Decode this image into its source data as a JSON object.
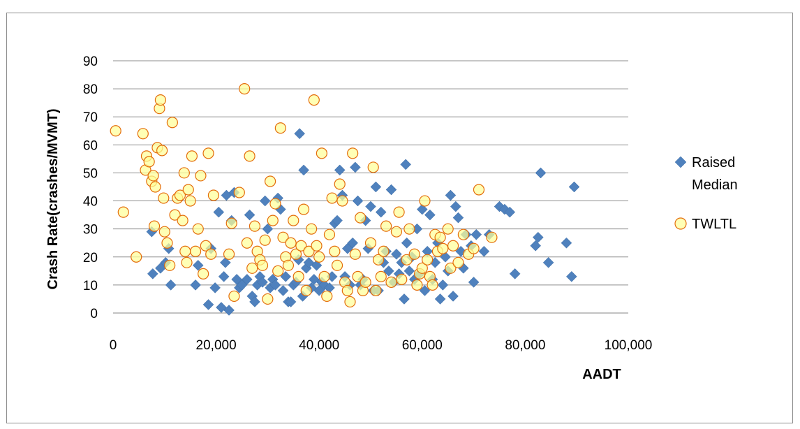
{
  "chart_data": {
    "type": "scatter",
    "xlabel": "AADT",
    "ylabel": "Crash Rate(crashes/MVMT)",
    "xlim": [
      0,
      100000
    ],
    "ylim": [
      0,
      90
    ],
    "x_ticks": [
      "0",
      "20,000",
      "40,000",
      "60,000",
      "80,000",
      "100,000"
    ],
    "y_ticks": [
      "0",
      "10",
      "20",
      "30",
      "40",
      "50",
      "60",
      "70",
      "80",
      "90"
    ],
    "grid": "horizontal",
    "legend_position": "right",
    "series": [
      {
        "name": "Raised Median",
        "marker": "diamond",
        "color": "#4f81bd",
        "points": [
          [
            7500,
            29
          ],
          [
            7700,
            14
          ],
          [
            9200,
            16
          ],
          [
            10200,
            18
          ],
          [
            10800,
            23
          ],
          [
            11200,
            10
          ],
          [
            16000,
            10
          ],
          [
            16500,
            17
          ],
          [
            18500,
            3
          ],
          [
            19000,
            23
          ],
          [
            19800,
            9
          ],
          [
            20500,
            36
          ],
          [
            21000,
            2
          ],
          [
            21500,
            13
          ],
          [
            21800,
            18
          ],
          [
            22000,
            42
          ],
          [
            22500,
            1
          ],
          [
            23000,
            33
          ],
          [
            23500,
            43
          ],
          [
            24000,
            12
          ],
          [
            24500,
            9
          ],
          [
            25000,
            10
          ],
          [
            26000,
            12
          ],
          [
            26500,
            35
          ],
          [
            27000,
            6
          ],
          [
            27500,
            4
          ],
          [
            28000,
            10
          ],
          [
            28500,
            13
          ],
          [
            29000,
            11
          ],
          [
            29500,
            40
          ],
          [
            30000,
            30
          ],
          [
            30500,
            9
          ],
          [
            31000,
            12
          ],
          [
            31500,
            10
          ],
          [
            32000,
            41
          ],
          [
            32500,
            37
          ],
          [
            33000,
            8
          ],
          [
            33500,
            13
          ],
          [
            34000,
            4
          ],
          [
            34500,
            4
          ],
          [
            35000,
            10
          ],
          [
            35500,
            11
          ],
          [
            36000,
            19
          ],
          [
            36200,
            64
          ],
          [
            36800,
            6
          ],
          [
            37000,
            51
          ],
          [
            37500,
            16
          ],
          [
            38000,
            18
          ],
          [
            38500,
            9
          ],
          [
            39000,
            12
          ],
          [
            39500,
            17
          ],
          [
            40000,
            8
          ],
          [
            40500,
            11
          ],
          [
            41000,
            10
          ],
          [
            42000,
            9
          ],
          [
            42500,
            13
          ],
          [
            43000,
            32
          ],
          [
            43500,
            33
          ],
          [
            44000,
            51
          ],
          [
            44500,
            42
          ],
          [
            45000,
            13
          ],
          [
            45500,
            23
          ],
          [
            46000,
            10
          ],
          [
            46500,
            25
          ],
          [
            47000,
            52
          ],
          [
            47500,
            40
          ],
          [
            48000,
            10
          ],
          [
            48500,
            12
          ],
          [
            49000,
            33
          ],
          [
            49500,
            23
          ],
          [
            50000,
            38
          ],
          [
            50500,
            8
          ],
          [
            51000,
            45
          ],
          [
            51500,
            8
          ],
          [
            52000,
            36
          ],
          [
            52500,
            18
          ],
          [
            53000,
            22
          ],
          [
            53500,
            15
          ],
          [
            54000,
            44
          ],
          [
            54500,
            11
          ],
          [
            55000,
            21
          ],
          [
            55500,
            14
          ],
          [
            56000,
            18
          ],
          [
            56500,
            5
          ],
          [
            56800,
            53
          ],
          [
            57000,
            25
          ],
          [
            57500,
            15
          ],
          [
            58000,
            20
          ],
          [
            58500,
            12
          ],
          [
            59000,
            30
          ],
          [
            59500,
            14
          ],
          [
            60000,
            37
          ],
          [
            60500,
            8
          ],
          [
            61000,
            22
          ],
          [
            61500,
            35
          ],
          [
            62000,
            12
          ],
          [
            62500,
            18
          ],
          [
            63000,
            25
          ],
          [
            63500,
            5
          ],
          [
            64000,
            10
          ],
          [
            64500,
            20
          ],
          [
            65000,
            15
          ],
          [
            65500,
            42
          ],
          [
            66000,
            6
          ],
          [
            66500,
            38
          ],
          [
            67000,
            34
          ],
          [
            67500,
            22
          ],
          [
            68000,
            16
          ],
          [
            68500,
            28
          ],
          [
            69500,
            24
          ],
          [
            70000,
            11
          ],
          [
            70500,
            28
          ],
          [
            72000,
            22
          ],
          [
            73000,
            28
          ],
          [
            75000,
            38
          ],
          [
            76000,
            37
          ],
          [
            77000,
            36
          ],
          [
            78000,
            14
          ],
          [
            82000,
            24
          ],
          [
            82500,
            27
          ],
          [
            83000,
            50
          ],
          [
            84500,
            18
          ],
          [
            88000,
            25
          ],
          [
            89000,
            13
          ],
          [
            89500,
            45
          ]
        ]
      },
      {
        "name": "TWLTL",
        "marker": "circle",
        "color": "#ffff99",
        "stroke": "#e46c0a",
        "points": [
          [
            500,
            65
          ],
          [
            2000,
            36
          ],
          [
            4500,
            20
          ],
          [
            5800,
            64
          ],
          [
            6300,
            51
          ],
          [
            6500,
            56
          ],
          [
            7000,
            54
          ],
          [
            7500,
            47
          ],
          [
            7800,
            49
          ],
          [
            8000,
            31
          ],
          [
            8200,
            45
          ],
          [
            8600,
            59
          ],
          [
            9000,
            73
          ],
          [
            9200,
            76
          ],
          [
            9500,
            58
          ],
          [
            9800,
            41
          ],
          [
            10000,
            29
          ],
          [
            10500,
            25
          ],
          [
            11000,
            17
          ],
          [
            11500,
            68
          ],
          [
            12000,
            35
          ],
          [
            12500,
            41
          ],
          [
            13000,
            42
          ],
          [
            13500,
            33
          ],
          [
            13800,
            50
          ],
          [
            14000,
            22
          ],
          [
            14300,
            18
          ],
          [
            14600,
            44
          ],
          [
            15000,
            40
          ],
          [
            15300,
            56
          ],
          [
            16000,
            22
          ],
          [
            16500,
            30
          ],
          [
            17000,
            49
          ],
          [
            17500,
            14
          ],
          [
            18000,
            24
          ],
          [
            18500,
            57
          ],
          [
            19000,
            21
          ],
          [
            19500,
            42
          ],
          [
            22500,
            21
          ],
          [
            23000,
            32
          ],
          [
            23500,
            6
          ],
          [
            24500,
            43
          ],
          [
            25500,
            80
          ],
          [
            26000,
            25
          ],
          [
            26500,
            56
          ],
          [
            27000,
            16
          ],
          [
            27500,
            31
          ],
          [
            28000,
            22
          ],
          [
            28500,
            19
          ],
          [
            29000,
            17
          ],
          [
            29500,
            26
          ],
          [
            30000,
            5
          ],
          [
            30500,
            47
          ],
          [
            31000,
            33
          ],
          [
            31500,
            39
          ],
          [
            32000,
            15
          ],
          [
            32500,
            66
          ],
          [
            33000,
            27
          ],
          [
            33500,
            20
          ],
          [
            34000,
            17
          ],
          [
            34500,
            25
          ],
          [
            35000,
            33
          ],
          [
            35500,
            21
          ],
          [
            36000,
            13
          ],
          [
            36500,
            24
          ],
          [
            37000,
            37
          ],
          [
            37500,
            8
          ],
          [
            38000,
            22
          ],
          [
            38500,
            30
          ],
          [
            39000,
            76
          ],
          [
            39500,
            24
          ],
          [
            40000,
            20
          ],
          [
            40500,
            57
          ],
          [
            41000,
            13
          ],
          [
            41500,
            6
          ],
          [
            42000,
            28
          ],
          [
            42500,
            41
          ],
          [
            43000,
            22
          ],
          [
            43500,
            17
          ],
          [
            44000,
            46
          ],
          [
            44500,
            40
          ],
          [
            45000,
            11
          ],
          [
            45500,
            8
          ],
          [
            46000,
            4
          ],
          [
            46500,
            57
          ],
          [
            47000,
            21
          ],
          [
            47500,
            13
          ],
          [
            48000,
            34
          ],
          [
            48500,
            8
          ],
          [
            49000,
            11
          ],
          [
            50000,
            25
          ],
          [
            50500,
            52
          ],
          [
            51000,
            8
          ],
          [
            51500,
            19
          ],
          [
            52000,
            13
          ],
          [
            52500,
            22
          ],
          [
            53000,
            31
          ],
          [
            54000,
            11
          ],
          [
            55000,
            29
          ],
          [
            55500,
            36
          ],
          [
            56000,
            12
          ],
          [
            57000,
            19
          ],
          [
            57500,
            30
          ],
          [
            58500,
            21
          ],
          [
            59000,
            10
          ],
          [
            59500,
            14
          ],
          [
            60000,
            16
          ],
          [
            60500,
            40
          ],
          [
            61000,
            19
          ],
          [
            61500,
            13
          ],
          [
            62000,
            10
          ],
          [
            62500,
            28
          ],
          [
            63000,
            22
          ],
          [
            63500,
            27
          ],
          [
            64000,
            23
          ],
          [
            65000,
            30
          ],
          [
            65500,
            16
          ],
          [
            66000,
            24
          ],
          [
            67000,
            18
          ],
          [
            68000,
            28
          ],
          [
            69000,
            21
          ],
          [
            70000,
            23
          ],
          [
            71000,
            44
          ],
          [
            73500,
            27
          ]
        ]
      }
    ]
  }
}
